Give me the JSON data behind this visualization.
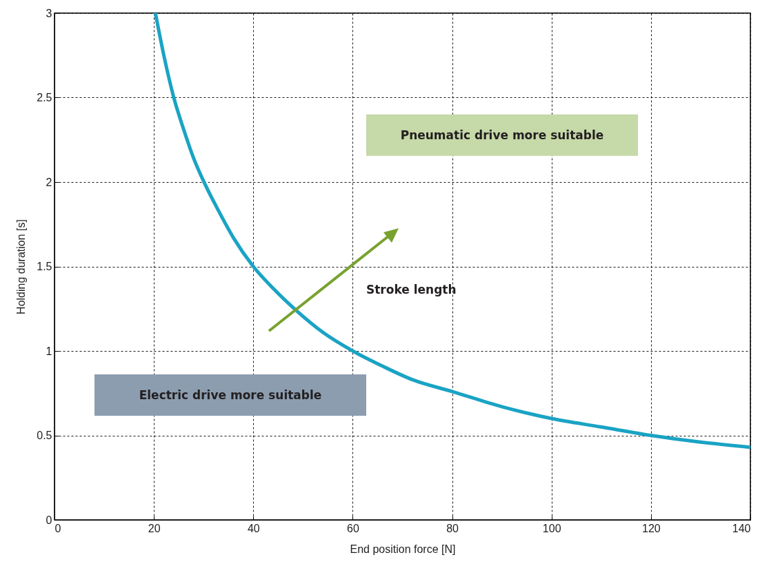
{
  "chart_data": {
    "type": "line",
    "xlabel": "End position force [N]",
    "ylabel": "Holding duration [s]",
    "x": [
      20.3,
      22,
      24,
      26,
      28,
      30.4,
      33,
      36,
      40,
      44,
      49,
      54,
      60,
      66,
      72,
      80,
      90,
      100,
      110,
      120,
      130,
      140
    ],
    "series": [
      {
        "color": "#1aa3c4",
        "values": [
          3.0,
          2.75,
          2.5,
          2.31,
          2.14,
          1.98,
          1.83,
          1.67,
          1.5,
          1.37,
          1.23,
          1.11,
          1.0,
          0.91,
          0.83,
          0.76,
          0.67,
          0.6,
          0.55,
          0.5,
          0.46,
          0.43
        ]
      }
    ],
    "xlim": [
      0,
      140
    ],
    "xticks": [
      0,
      20,
      40,
      60,
      80,
      100,
      120,
      140
    ],
    "ylim": [
      0,
      3
    ],
    "yticks": [
      0,
      0.5,
      1,
      1.5,
      2,
      2.5,
      3
    ],
    "grid": true,
    "line_style": "solid",
    "marker": "none",
    "annotations": [
      "Pneumatic drive more suitable",
      "Stroke length",
      "Electric drive more suitable"
    ]
  }
}
